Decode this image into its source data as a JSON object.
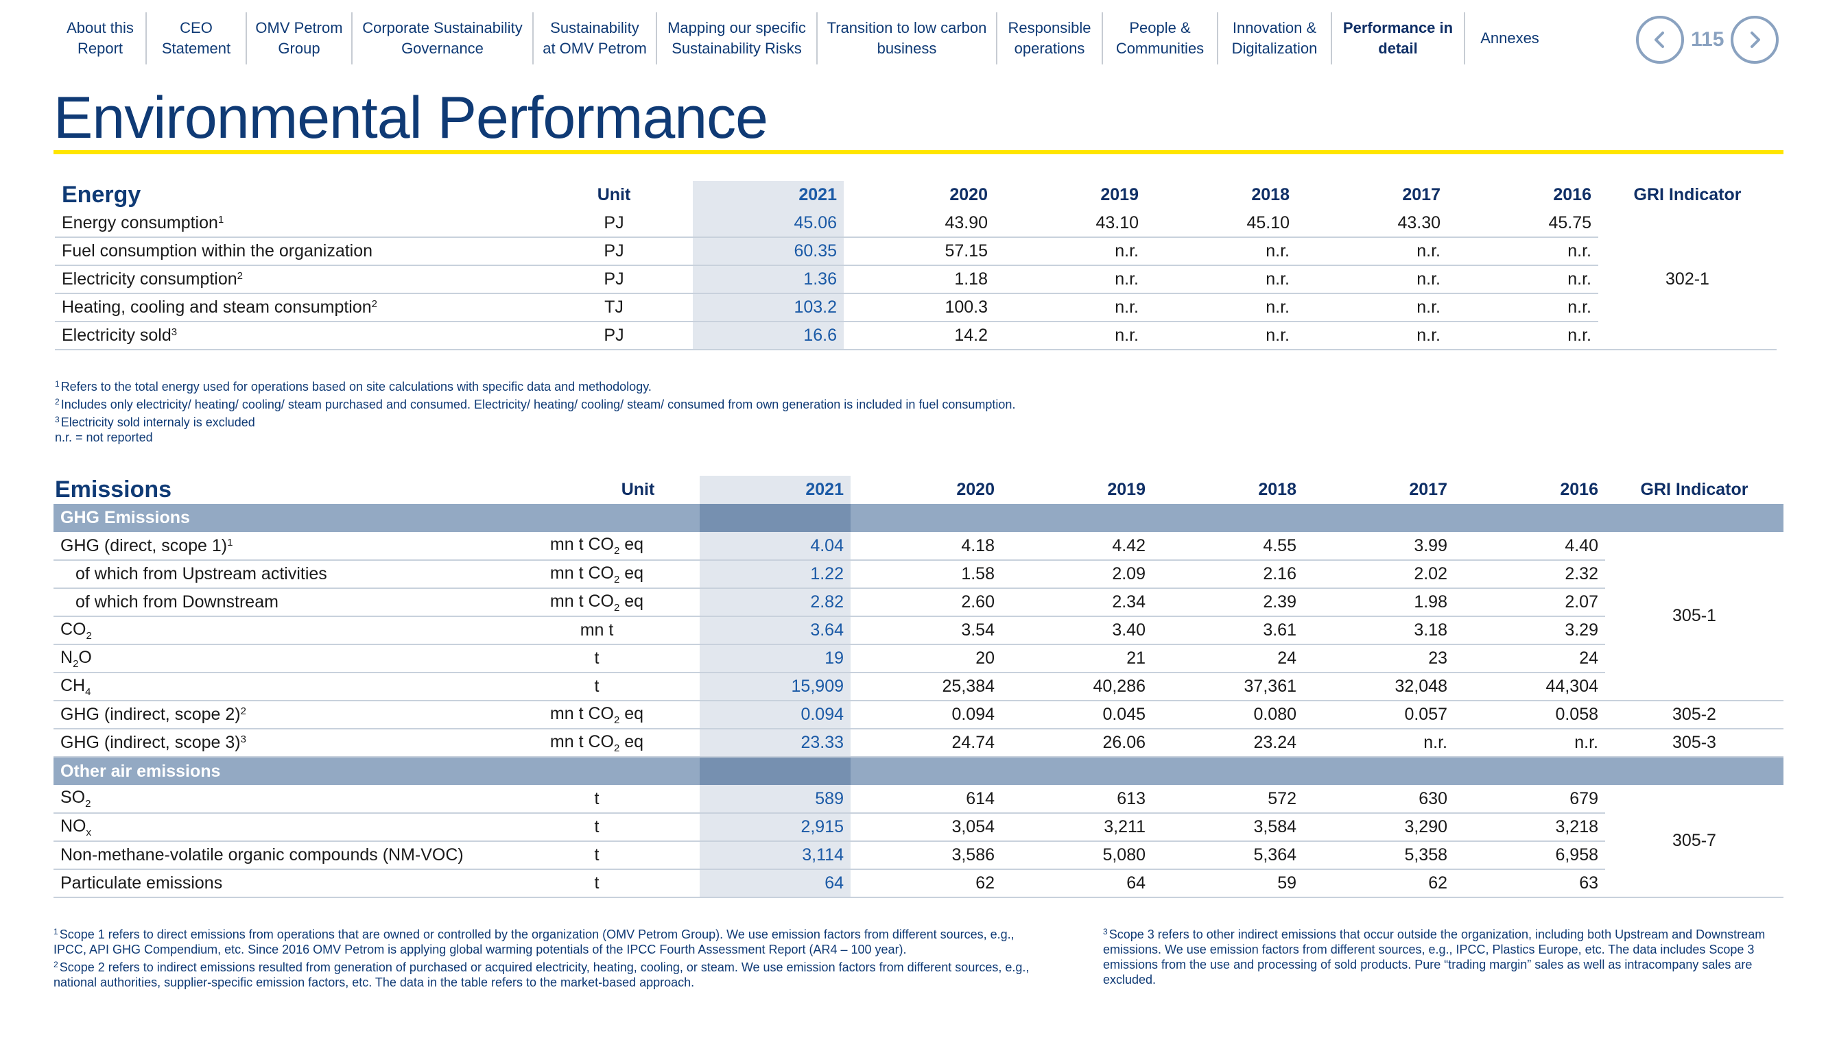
{
  "nav": {
    "items": [
      "About this Report",
      "CEO Statement",
      "OMV Petrom Group",
      "Corporate Sustainability Governance",
      "Sustainability at OMV Petrom",
      "Mapping our specific Sustainability Risks",
      "Transition to low carbon business",
      "Responsible operations",
      "People & Communities",
      "Innovation & Digitalization",
      "Performance in detail",
      "Annexes"
    ],
    "active_index": 10,
    "page_number": "115"
  },
  "page_title": "Environmental Performance",
  "energy": {
    "title": "Energy",
    "headers": {
      "unit": "Unit",
      "years": [
        "2021",
        "2020",
        "2019",
        "2018",
        "2017",
        "2016"
      ],
      "gri": "GRI Indicator"
    },
    "rows": [
      {
        "label": "Energy consumption",
        "note": "1",
        "unit": "PJ",
        "values": [
          "45.06",
          "43.90",
          "43.10",
          "45.10",
          "43.30",
          "45.75"
        ]
      },
      {
        "label": "Fuel consumption within the organization",
        "note": "",
        "unit": "PJ",
        "values": [
          "60.35",
          "57.15",
          "n.r.",
          "n.r.",
          "n.r.",
          "n.r."
        ]
      },
      {
        "label": "Electricity consumption",
        "note": "2",
        "unit": "PJ",
        "values": [
          "1.36",
          "1.18",
          "n.r.",
          "n.r.",
          "n.r.",
          "n.r."
        ]
      },
      {
        "label": "Heating, cooling and steam consumption",
        "note": "2",
        "unit": "TJ",
        "values": [
          "103.2",
          "100.3",
          "n.r.",
          "n.r.",
          "n.r.",
          "n.r."
        ]
      },
      {
        "label": "Electricity sold",
        "note": "3",
        "unit": "PJ",
        "values": [
          "16.6",
          "14.2",
          "n.r.",
          "n.r.",
          "n.r.",
          "n.r."
        ]
      }
    ],
    "gri": "302-1",
    "footnotes": [
      {
        "mark": "1",
        "text": "Refers to the total energy used for operations based on site calculations with specific data and methodology."
      },
      {
        "mark": "2",
        "text": "Includes only electricity/ heating/ cooling/ steam purchased and consumed. Electricity/ heating/ cooling/ steam/ consumed from own generation is included in fuel consumption."
      },
      {
        "mark": "3",
        "text": "Electricity sold internaly is excluded"
      },
      {
        "mark": "",
        "text": "n.r. = not reported"
      }
    ]
  },
  "emissions": {
    "title": "Emissions",
    "headers": {
      "unit": "Unit",
      "years": [
        "2021",
        "2020",
        "2019",
        "2018",
        "2017",
        "2016"
      ],
      "gri": "GRI Indicator"
    },
    "ghg_band": "GHG Emissions",
    "other_band": "Other air emissions",
    "rows": {
      "ghg_direct": {
        "label": "GHG (direct, scope 1)",
        "note": "1",
        "unit": "mn t CO2 eq",
        "values": [
          "4.04",
          "4.18",
          "4.42",
          "4.55",
          "3.99",
          "4.40"
        ]
      },
      "upstream": {
        "label": "of which from Upstream activities",
        "unit": "mn t CO2 eq",
        "values": [
          "1.22",
          "1.58",
          "2.09",
          "2.16",
          "2.02",
          "2.32"
        ]
      },
      "downstream": {
        "label": "of which from Downstream",
        "unit": "mn t CO2 eq",
        "values": [
          "2.82",
          "2.60",
          "2.34",
          "2.39",
          "1.98",
          "2.07"
        ]
      },
      "co2": {
        "label": "CO2",
        "unit": "mn t",
        "values": [
          "3.64",
          "3.54",
          "3.40",
          "3.61",
          "3.18",
          "3.29"
        ]
      },
      "n2o": {
        "label": "N2O",
        "unit": "t",
        "values": [
          "19",
          "20",
          "21",
          "24",
          "23",
          "24"
        ]
      },
      "ch4": {
        "label": "CH4",
        "unit": "t",
        "values": [
          "15,909",
          "25,384",
          "40,286",
          "37,361",
          "32,048",
          "44,304"
        ]
      },
      "ghg_scope2": {
        "label": "GHG (indirect, scope 2)",
        "note": "2",
        "unit": "mn t CO2 eq",
        "values": [
          "0.094",
          "0.094",
          "0.045",
          "0.080",
          "0.057",
          "0.058"
        ]
      },
      "ghg_scope3": {
        "label": "GHG (indirect, scope 3)",
        "note": "3",
        "unit": "mn t CO2 eq",
        "values": [
          "23.33",
          "24.74",
          "26.06",
          "23.24",
          "n.r.",
          "n.r."
        ]
      },
      "so2": {
        "label": "SO2",
        "unit": "t",
        "values": [
          "589",
          "614",
          "613",
          "572",
          "630",
          "679"
        ]
      },
      "nox": {
        "label": "NOx",
        "unit": "t",
        "values": [
          "2,915",
          "3,054",
          "3,211",
          "3,584",
          "3,290",
          "3,218"
        ]
      },
      "nmvoc": {
        "label": "Non-methane-volatile organic compounds (NM-VOC)",
        "unit": "t",
        "values": [
          "3,114",
          "3,586",
          "5,080",
          "5,364",
          "5,358",
          "6,958"
        ]
      },
      "particulate": {
        "label": "Particulate emissions",
        "unit": "t",
        "values": [
          "64",
          "62",
          "64",
          "59",
          "62",
          "63"
        ]
      }
    },
    "gri": {
      "g1": "305-1",
      "g2": "305-2",
      "g3": "305-3",
      "g7": "305-7"
    },
    "footnotes_left": [
      {
        "mark": "1",
        "text": "Scope 1 refers to direct emissions from operations that are owned or controlled by the organization (OMV Petrom Group). We use emission factors from different sources, e.g., IPCC, API GHG Compendium, etc. Since 2016 OMV Petrom is applying global warming potentials of the IPCC Fourth Assessment Report (AR4 – 100 year)."
      },
      {
        "mark": "2",
        "text": "Scope 2 refers to indirect emissions resulted from generation of purchased or acquired electricity, heating, cooling, or steam. We use emission factors from different sources, e.g., national authorities, supplier-specific emission factors, etc. The data in the table refers to the market-based approach."
      }
    ],
    "footnotes_right": [
      {
        "mark": "3",
        "text": "Scope 3 refers to other indirect emissions that occur outside the organization, including both Upstream and Downstream emissions. We use emission factors from different sources, e.g., IPCC, Plastics Europe, etc. The data includes Scope 3 emissions from the use and processing of sold products. Pure “trading margin” sales as well as intracompany sales are excluded."
      }
    ]
  },
  "colors": {
    "brand_blue": "#0f3a75",
    "accent_yellow": "#ffe500",
    "highlight_column": "#e2e7ee",
    "band": "#93a9c3"
  }
}
